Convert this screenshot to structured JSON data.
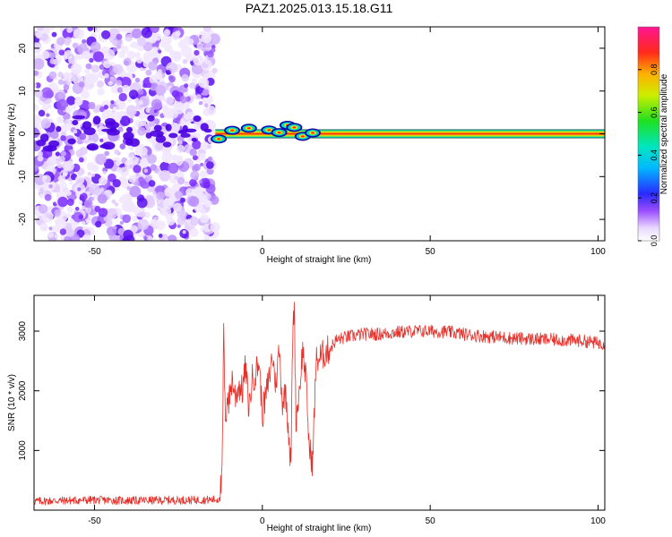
{
  "title": "PAZ1.2025.013.15.18.G11",
  "chart_data": [
    {
      "type": "heatmap",
      "xlabel": "Height of straight line (km)",
      "ylabel": "Frequency (Hz)",
      "xlim": [
        -68,
        102
      ],
      "ylim": [
        -25,
        25
      ],
      "xticks": [
        -50,
        0,
        50,
        100
      ],
      "yticks": [
        -20,
        -10,
        0,
        10,
        20
      ],
      "colorbar": {
        "label": "Normalized spectral amplitude",
        "range": [
          0.0,
          1.0
        ],
        "ticks": [
          0.0,
          0.2,
          0.4,
          0.6,
          0.8
        ],
        "tick_labels": [
          "0.0",
          "0.2",
          "0.4",
          "0.6",
          "0.8"
        ],
        "colormap": "rainbow (white-violet-blue-cyan-green-yellow-orange-red-pink)"
      },
      "features": [
        {
          "name": "noise",
          "x_range": [
            -68,
            -14
          ],
          "freq_range": [
            -25,
            25
          ],
          "amplitude_range": [
            0.0,
            0.3
          ]
        },
        {
          "name": "tone",
          "x_range": [
            -14,
            102
          ],
          "freq_center": 0,
          "amplitude": 0.95
        }
      ]
    },
    {
      "type": "line",
      "xlabel": "Height of straight line (km)",
      "ylabel": "SNR (10 * v/v)",
      "xlim": [
        -68,
        102
      ],
      "ylim": [
        0,
        3600
      ],
      "xticks": [
        -50,
        0,
        50,
        100
      ],
      "yticks": [
        1000,
        2000,
        3000
      ],
      "line_color": "#e8302a",
      "x": [
        -68,
        -60,
        -50,
        -40,
        -30,
        -20,
        -15,
        -13,
        -12,
        -11.5,
        -11,
        -10.5,
        -10,
        -9,
        -8,
        -7,
        -6,
        -5,
        -4,
        -3,
        -2,
        -1,
        0,
        1,
        2,
        3,
        4,
        5,
        6,
        7,
        8,
        8.5,
        9,
        9.5,
        10,
        11,
        12,
        13,
        14,
        15,
        16,
        18,
        20,
        22,
        25,
        30,
        35,
        40,
        45,
        50,
        55,
        60,
        65,
        70,
        75,
        80,
        85,
        90,
        95,
        100,
        102
      ],
      "y": [
        150,
        160,
        170,
        160,
        165,
        170,
        175,
        180,
        500,
        3000,
        1300,
        2000,
        1800,
        2200,
        1900,
        2100,
        2000,
        2400,
        1700,
        2200,
        2300,
        2500,
        1600,
        1900,
        2200,
        2600,
        2100,
        2700,
        1800,
        2000,
        1200,
        700,
        2800,
        3500,
        1500,
        2000,
        2700,
        2200,
        1000,
        800,
        2500,
        2600,
        2700,
        2850,
        2900,
        2950,
        2950,
        2980,
        3000,
        3000,
        2990,
        2950,
        2920,
        2900,
        2880,
        2870,
        2860,
        2850,
        2840,
        2800,
        2800
      ]
    }
  ]
}
